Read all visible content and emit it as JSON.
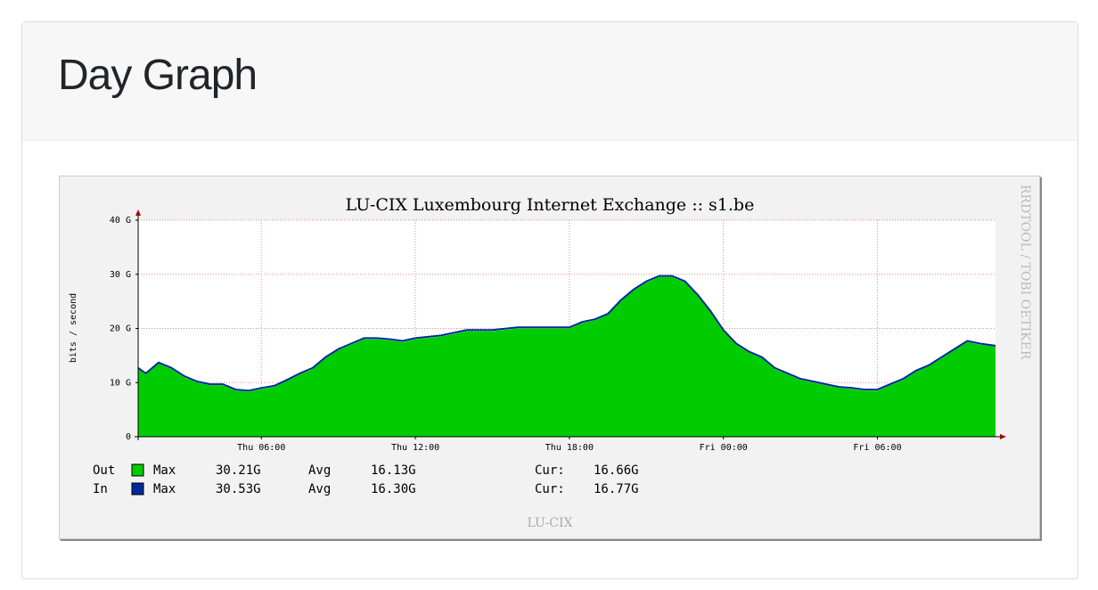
{
  "card": {
    "title": "Day Graph"
  },
  "chart_data": {
    "type": "area",
    "title": "LU-CIX Luxembourg Internet Exchange :: s1.be",
    "y_label": "bits / second",
    "watermark": "RRDTOOL / TOBI OETIKER",
    "footer": "LU-CIX",
    "x": [
      1.2,
      1.5,
      2,
      2.5,
      3,
      3.5,
      4,
      4.5,
      5,
      5.5,
      6,
      6.5,
      7,
      7.5,
      8,
      8.5,
      9,
      9.5,
      10,
      10.5,
      11,
      11.5,
      12,
      13,
      14,
      15,
      16,
      17,
      18,
      18.5,
      19,
      19.5,
      20,
      20.5,
      21,
      21.5,
      22,
      22.5,
      23,
      23.5,
      24,
      24.5,
      25,
      25.5,
      26,
      26.5,
      27,
      27.5,
      28,
      28.5,
      29,
      29.5,
      30,
      30.5,
      31,
      31.5,
      32,
      32.5,
      33,
      33.5,
      34,
      34.6
    ],
    "series": [
      {
        "name": "Out",
        "color": "#00cc00",
        "style": "area",
        "values": [
          12.5,
          11.5,
          13.5,
          12.5,
          11,
          10,
          9.5,
          9.5,
          8.5,
          8.3,
          8.8,
          9.2,
          10.3,
          11.5,
          12.5,
          14.5,
          16,
          17,
          18,
          18,
          17.8,
          17.5,
          18,
          18.5,
          19.5,
          19.5,
          20,
          20,
          20,
          21,
          21.5,
          22.5,
          25,
          27,
          28.5,
          29.5,
          29.5,
          28.5,
          26,
          23,
          19.5,
          17,
          15.5,
          14.5,
          12.5,
          11.5,
          10.5,
          10,
          9.5,
          9,
          8.8,
          8.5,
          8.5,
          9.5,
          10.5,
          12,
          13,
          14.5,
          16,
          17.5,
          17,
          16.7
        ],
        "stats": [
          "Max",
          "30.21G",
          "Avg",
          "16.13G",
          "Cur:",
          "16.66G"
        ]
      },
      {
        "name": "In",
        "color": "#002a97",
        "style": "line",
        "values": [
          12.7,
          11.7,
          13.7,
          12.7,
          11.2,
          10.2,
          9.7,
          9.7,
          8.7,
          8.5,
          9,
          9.4,
          10.5,
          11.7,
          12.7,
          14.7,
          16.2,
          17.2,
          18.2,
          18.2,
          18,
          17.7,
          18.2,
          18.7,
          19.7,
          19.7,
          20.2,
          20.2,
          20.2,
          21.2,
          21.7,
          22.7,
          25.2,
          27.2,
          28.7,
          29.7,
          29.7,
          28.7,
          26.2,
          23.2,
          19.7,
          17.2,
          15.7,
          14.7,
          12.7,
          11.7,
          10.7,
          10.2,
          9.7,
          9.2,
          9,
          8.7,
          8.7,
          9.7,
          10.7,
          12.2,
          13.2,
          14.7,
          16.2,
          17.7,
          17.2,
          16.8
        ],
        "stats": [
          "Max",
          "30.53G",
          "Avg",
          "16.30G",
          "Cur:",
          "16.77G"
        ]
      }
    ],
    "xlim": [
      1.2,
      34.6
    ],
    "xticks": [
      {
        "value": 6,
        "label": "Thu 06:00"
      },
      {
        "value": 12,
        "label": "Thu 12:00"
      },
      {
        "value": 18,
        "label": "Thu 18:00"
      },
      {
        "value": 24,
        "label": "Fri 00:00"
      },
      {
        "value": 30,
        "label": "Fri 06:00"
      }
    ],
    "ylim": [
      0,
      40
    ],
    "yticks": [
      0,
      {
        "value": 10,
        "label": "10 G"
      },
      {
        "value": 20,
        "label": "20 G"
      },
      {
        "value": 30,
        "label": "30 G"
      },
      {
        "value": 40,
        "label": "40 G"
      }
    ],
    "grid": true
  }
}
